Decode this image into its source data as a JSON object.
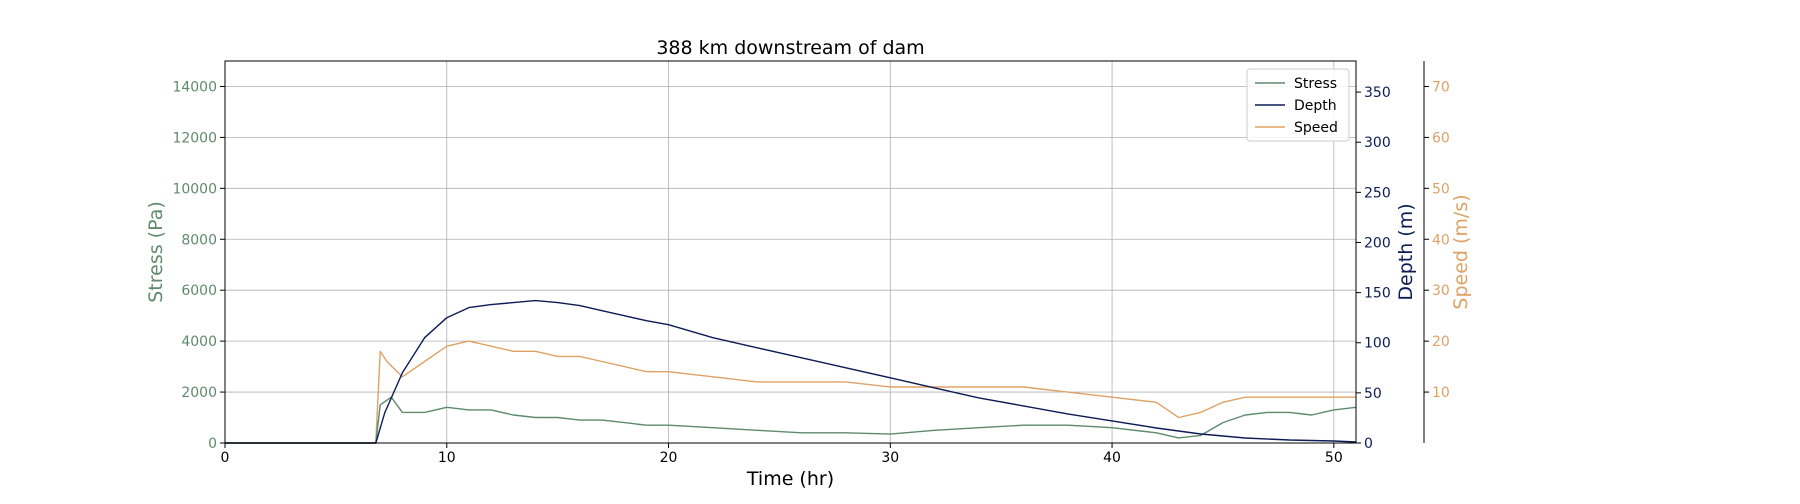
{
  "chart_data": {
    "type": "line",
    "title": "388 km downstream of dam",
    "xlabel": "Time (hr)",
    "xlim": [
      0,
      51
    ],
    "xticks": [
      0,
      10,
      20,
      30,
      40,
      50
    ],
    "grid": true,
    "legend_position": "top-right",
    "axes": {
      "stress": {
        "label": "Stress (Pa)",
        "color": "#5f8a6e",
        "ylim": [
          0,
          15000
        ],
        "ticks": [
          0,
          2000,
          4000,
          6000,
          8000,
          10000,
          12000,
          14000
        ]
      },
      "depth": {
        "label": "Depth (m)",
        "color": "#0d1c57",
        "ylim": [
          0,
          381
        ],
        "ticks": [
          0,
          50,
          100,
          150,
          200,
          250,
          300,
          350
        ]
      },
      "speed": {
        "label": "Speed (m/s)",
        "color": "#dfa265",
        "ylim": [
          0,
          75
        ],
        "ticks": [
          10,
          20,
          30,
          40,
          50,
          60,
          70
        ]
      }
    },
    "series": [
      {
        "name": "Stress",
        "axis": "stress",
        "color": "#5f8a6e",
        "x": [
          0,
          6.8,
          7.0,
          7.5,
          8,
          9,
          10,
          11,
          12,
          13,
          14,
          15,
          16,
          17,
          18,
          19,
          20,
          22,
          24,
          26,
          28,
          30,
          32,
          34,
          36,
          38,
          40,
          42,
          43,
          44,
          45,
          46,
          47,
          48,
          49,
          50,
          51
        ],
        "y": [
          0,
          0,
          1500,
          1800,
          1200,
          1200,
          1400,
          1300,
          1300,
          1100,
          1000,
          1000,
          900,
          900,
          800,
          700,
          700,
          600,
          500,
          400,
          400,
          350,
          500,
          600,
          700,
          700,
          600,
          400,
          200,
          300,
          800,
          1100,
          1200,
          1200,
          1100,
          1300,
          1400
        ]
      },
      {
        "name": "Depth",
        "axis": "depth",
        "color": "#0d1c57",
        "x": [
          0,
          6.8,
          7.2,
          8,
          9,
          10,
          11,
          12,
          13,
          14,
          15,
          16,
          17,
          18,
          19,
          20,
          22,
          24,
          26,
          28,
          30,
          32,
          34,
          36,
          38,
          40,
          42,
          44,
          46,
          48,
          50,
          51
        ],
        "y": [
          0,
          0,
          30,
          70,
          105,
          125,
          135,
          138,
          140,
          142,
          140,
          137,
          132,
          127,
          122,
          118,
          105,
          95,
          85,
          75,
          65,
          55,
          45,
          37,
          29,
          22,
          15,
          9,
          5,
          3,
          2,
          1
        ]
      },
      {
        "name": "Speed",
        "axis": "speed",
        "color": "#dfa265",
        "x": [
          0,
          6.8,
          7.0,
          7.3,
          8,
          9,
          10,
          11,
          12,
          13,
          14,
          15,
          16,
          17,
          18,
          19,
          20,
          22,
          24,
          26,
          28,
          30,
          32,
          34,
          36,
          38,
          40,
          42,
          43,
          44,
          45,
          46,
          47,
          48,
          49,
          50,
          51
        ],
        "y": [
          0,
          0,
          18,
          16,
          13,
          16,
          19,
          20,
          19,
          18,
          18,
          17,
          17,
          16,
          15,
          14,
          14,
          13,
          12,
          12,
          12,
          11,
          11,
          11,
          11,
          10,
          9,
          8,
          5,
          6,
          8,
          9,
          9,
          9,
          9,
          9,
          9
        ]
      }
    ]
  }
}
